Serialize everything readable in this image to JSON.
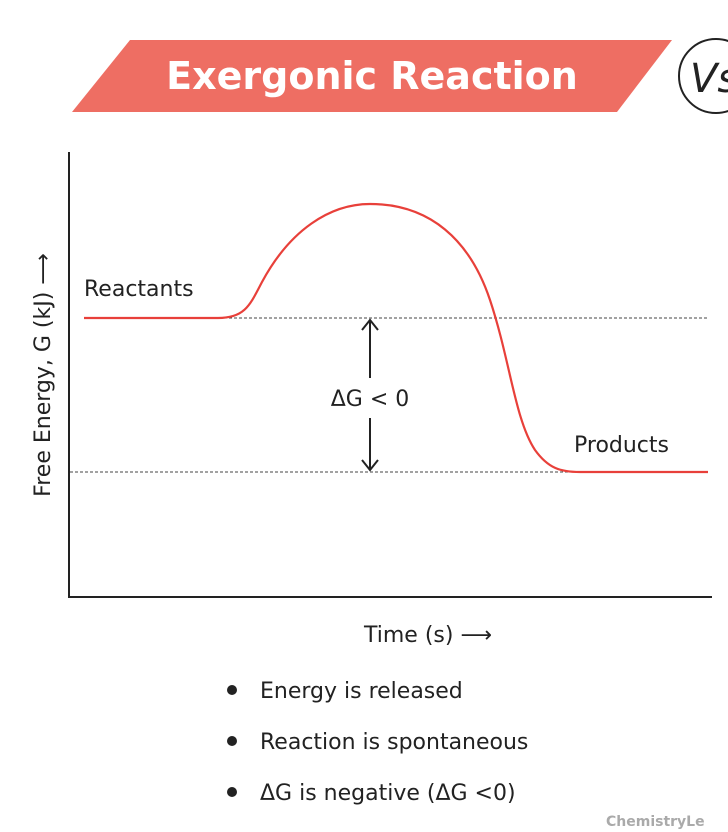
{
  "title": "Exergonic Reaction",
  "vs_badge": "Vs",
  "colors": {
    "banner": "#ee6e63",
    "curve": "#e8403a",
    "axis": "#222222"
  },
  "diagram": {
    "y_axis_label": "Free Energy, G (kJ) ⟶",
    "x_axis_label": "Time (s) ⟶",
    "reactants_label": "Reactants",
    "products_label": "Products",
    "delta_label": "ΔG < 0"
  },
  "bullets": [
    "Energy is released",
    "Reaction is spontaneous",
    "ΔG is negative (ΔG <0)"
  ],
  "watermark": "ChemistryLe"
}
